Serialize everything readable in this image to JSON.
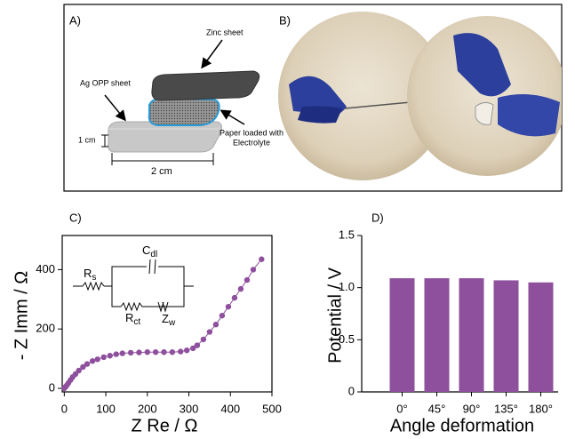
{
  "figure": {
    "panel_a": {
      "label": "A)",
      "zinc": "Zinc sheet",
      "ag": "Ag OPP sheet",
      "paper": [
        "Paper loaded with",
        "Electrolyte"
      ],
      "height": "1 cm",
      "width": "2 cm"
    },
    "panel_b": {
      "label": "B)"
    }
  },
  "chart_data": [
    {
      "type": "line",
      "label": "C)",
      "x_label": "Z Re / Ω",
      "y_label": "- Z Imm / Ω",
      "color": "#8e4f9d",
      "markers": true,
      "x": [
        0,
        3,
        6,
        10,
        15,
        20,
        27,
        35,
        45,
        55,
        68,
        80,
        95,
        110,
        125,
        140,
        160,
        180,
        200,
        220,
        240,
        260,
        280,
        295,
        310,
        320,
        335,
        350,
        365,
        380,
        395,
        410,
        425,
        440,
        455,
        475
      ],
      "values": [
        0,
        5,
        10,
        18,
        28,
        38,
        48,
        60,
        72,
        82,
        92,
        98,
        105,
        110,
        115,
        118,
        120,
        121,
        122,
        122,
        122,
        122,
        124,
        128,
        135,
        145,
        165,
        190,
        215,
        245,
        275,
        305,
        335,
        365,
        400,
        435
      ],
      "xlim": [
        -5,
        500
      ],
      "ylim": [
        -12,
        515
      ],
      "xticks": [
        0,
        100,
        200,
        300,
        400,
        500
      ],
      "yticks": [
        0,
        200,
        400
      ],
      "circuit": [
        {
          "symbol": "R",
          "subscript": "s"
        },
        {
          "symbol": "C",
          "subscript": "dl"
        },
        {
          "symbol": "R",
          "subscript": "ct"
        },
        {
          "symbol": "Z",
          "subscript": "w"
        }
      ]
    },
    {
      "type": "bar",
      "label": "D)",
      "x_label": "Angle deformation",
      "y_label": "Potential / V",
      "color": "#8e4f9d",
      "categories": [
        "0°",
        "45°",
        "90°",
        "135°",
        "180°"
      ],
      "values": [
        1.09,
        1.09,
        1.09,
        1.07,
        1.05
      ],
      "ylim": [
        0,
        1.5
      ],
      "yticks": [
        0,
        0.5,
        {
          "value": 1,
          "label": "1.0"
        },
        1.5
      ]
    }
  ]
}
